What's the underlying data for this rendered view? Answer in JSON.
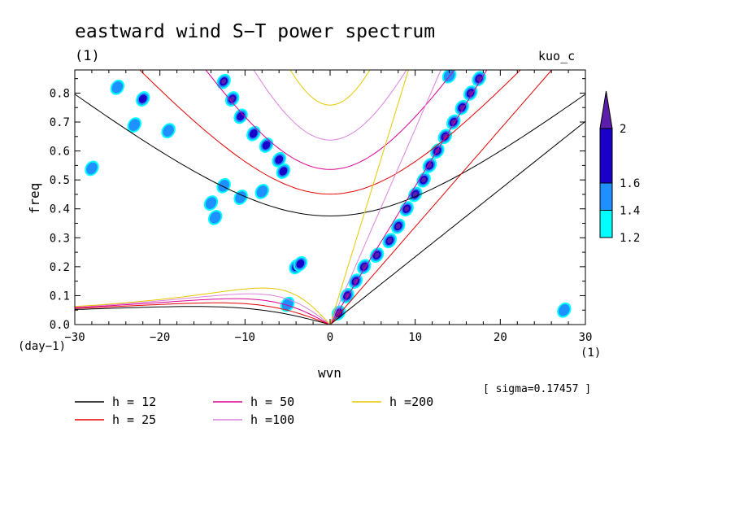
{
  "chart_data": {
    "type": "contour",
    "title": "eastward wind S−T power spectrum",
    "subtitle": "(1)",
    "tag": "kuo_c",
    "xlabel": "wvn",
    "ylabel": "freq",
    "x_unit": "(1)",
    "y_unit": "(day−1)",
    "xlim": [
      -30,
      30
    ],
    "ylim": [
      0,
      0.88
    ],
    "x_ticks": [
      -30,
      -20,
      -10,
      0,
      10,
      20,
      30
    ],
    "x_tick_labels": [
      "−30",
      "−20",
      "−10",
      "0",
      "10",
      "20",
      "30"
    ],
    "y_ticks": [
      0.0,
      0.1,
      0.2,
      0.3,
      0.4,
      0.5,
      0.6,
      0.7,
      0.8
    ],
    "y_tick_labels": [
      "0.0",
      "0.1",
      "0.2",
      "0.3",
      "0.4",
      "0.5",
      "0.6",
      "0.7",
      "0.8"
    ],
    "sigma_note": "[ sigma=0.17457 ]",
    "colorbar": {
      "levels": [
        1.2,
        1.4,
        1.6,
        2
      ],
      "level_labels": [
        "1.2",
        "1.4",
        "1.6",
        "2"
      ],
      "colors": [
        "#00ffff",
        "#1e90ff",
        "#1a00c8",
        "#5a1eaa"
      ]
    },
    "dispersion_curves": [
      {
        "name": "h = 12",
        "h": 12,
        "color": "#000000"
      },
      {
        "name": "h = 25",
        "h": 25,
        "color": "#e60000"
      },
      {
        "name": "h = 50",
        "h": 50,
        "color": "#dc0096"
      },
      {
        "name": "h =100",
        "h": 100,
        "color": "#dc82dc"
      },
      {
        "name": "h =200",
        "h": 200,
        "color": "#e6c800"
      }
    ],
    "spectral_blobs": [
      {
        "x": -12.5,
        "y": 0.84,
        "level": 3
      },
      {
        "x": -11.5,
        "y": 0.78,
        "level": 3
      },
      {
        "x": -10.5,
        "y": 0.72,
        "level": 2
      },
      {
        "x": -9,
        "y": 0.66,
        "level": 2
      },
      {
        "x": -7.5,
        "y": 0.62,
        "level": 2
      },
      {
        "x": -6,
        "y": 0.57,
        "level": 2
      },
      {
        "x": -5.5,
        "y": 0.53,
        "level": 2
      },
      {
        "x": -12.5,
        "y": 0.48,
        "level": 1
      },
      {
        "x": -10.5,
        "y": 0.44,
        "level": 1
      },
      {
        "x": -14,
        "y": 0.42,
        "level": 1
      },
      {
        "x": -22,
        "y": 0.78,
        "level": 2
      },
      {
        "x": -25,
        "y": 0.82,
        "level": 1
      },
      {
        "x": -19,
        "y": 0.67,
        "level": 1
      },
      {
        "x": -8,
        "y": 0.46,
        "level": 1
      },
      {
        "x": -13.5,
        "y": 0.37,
        "level": 1
      },
      {
        "x": -4,
        "y": 0.2,
        "level": 2
      },
      {
        "x": -3.5,
        "y": 0.21,
        "level": 2
      },
      {
        "x": -5,
        "y": 0.07,
        "level": 1
      },
      {
        "x": -28,
        "y": 0.54,
        "level": 1
      },
      {
        "x": -23,
        "y": 0.69,
        "level": 1
      },
      {
        "x": 1,
        "y": 0.04,
        "level": 3
      },
      {
        "x": 2,
        "y": 0.1,
        "level": 3
      },
      {
        "x": 3,
        "y": 0.15,
        "level": 3
      },
      {
        "x": 4,
        "y": 0.2,
        "level": 3
      },
      {
        "x": 5.5,
        "y": 0.24,
        "level": 3
      },
      {
        "x": 7,
        "y": 0.29,
        "level": 3
      },
      {
        "x": 8,
        "y": 0.34,
        "level": 3
      },
      {
        "x": 9,
        "y": 0.4,
        "level": 3
      },
      {
        "x": 10,
        "y": 0.45,
        "level": 3
      },
      {
        "x": 11,
        "y": 0.5,
        "level": 3
      },
      {
        "x": 11.7,
        "y": 0.55,
        "level": 3
      },
      {
        "x": 12.6,
        "y": 0.6,
        "level": 3
      },
      {
        "x": 13.5,
        "y": 0.65,
        "level": 3
      },
      {
        "x": 14.5,
        "y": 0.7,
        "level": 3
      },
      {
        "x": 15.5,
        "y": 0.75,
        "level": 3
      },
      {
        "x": 16.5,
        "y": 0.8,
        "level": 3
      },
      {
        "x": 17.5,
        "y": 0.85,
        "level": 3
      },
      {
        "x": 14,
        "y": 0.86,
        "level": 1
      },
      {
        "x": 27.5,
        "y": 0.05,
        "level": 1
      }
    ]
  }
}
